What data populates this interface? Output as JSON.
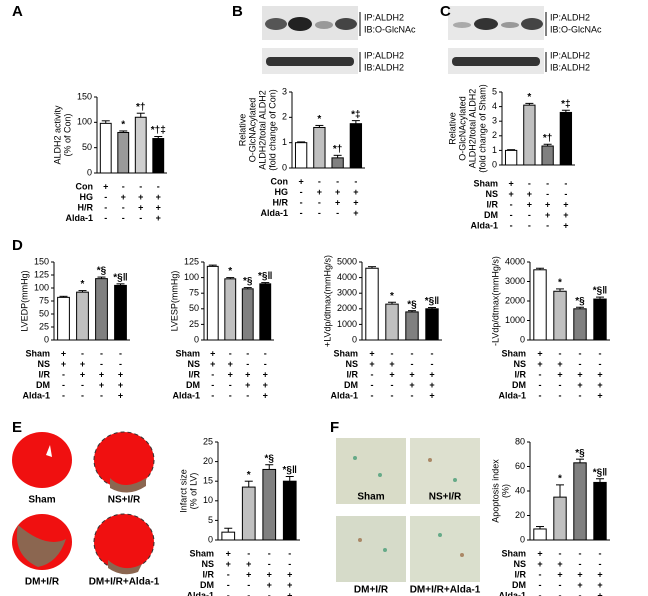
{
  "panel_labels": [
    "A",
    "B",
    "C",
    "D",
    "E",
    "F"
  ],
  "blots": [
    {
      "rows": [
        [
          "IP:ALDH2",
          "IB:O-GlcNAc"
        ],
        [
          "IP:ALDH2",
          "IB:ALDH2"
        ]
      ]
    },
    {
      "rows": [
        [
          "IP:ALDH2",
          "IB:O-GlcNAc"
        ],
        [
          "IP:ALDH2",
          "IB:ALDH2"
        ]
      ]
    }
  ],
  "images": [
    {
      "labels": [
        "Sham",
        "NS+I/R",
        "DM+I/R",
        "DM+I/R+Alda-1"
      ]
    },
    {
      "labels": [
        "Sham",
        "NS+I/R",
        "DM+I/R",
        "DM+I/R+Alda-1"
      ]
    }
  ],
  "chart_data": [
    {
      "type": "bar",
      "ylabel": [
        "ALDH2 activity",
        "(% of Con)"
      ],
      "ylim": [
        0,
        150
      ],
      "yticks": [
        0,
        50,
        100,
        150
      ],
      "values": [
        98,
        80,
        110,
        68
      ],
      "errors": [
        5,
        3,
        8,
        4
      ],
      "colors": [
        "#ffffff",
        "#9a9a9a",
        "#cfcfcf",
        "#000000"
      ],
      "annotations": [
        null,
        "*",
        "*†",
        "*†‡"
      ],
      "conditions": [
        {
          "label": "Con",
          "marks": [
            "+",
            "-",
            "-",
            "-"
          ]
        },
        {
          "label": "HG",
          "marks": [
            "-",
            "+",
            "+",
            "+"
          ]
        },
        {
          "label": "H/R",
          "marks": [
            "-",
            "-",
            "+",
            "+"
          ]
        },
        {
          "label": "Alda-1",
          "marks": [
            "-",
            "-",
            "-",
            "+"
          ]
        }
      ]
    },
    {
      "type": "bar",
      "ylabel": [
        "Relative",
        "O-GlcNAcylated",
        "ALDH2/total ALDH2",
        "(fold change of Con)"
      ],
      "ylim": [
        0,
        3
      ],
      "yticks": [
        0,
        1,
        2,
        3
      ],
      "values": [
        1.0,
        1.6,
        0.4,
        1.75
      ],
      "errors": [
        0.03,
        0.08,
        0.1,
        0.12
      ],
      "colors": [
        "#ffffff",
        "#c0c0c0",
        "#808080",
        "#000000"
      ],
      "annotations": [
        null,
        "*",
        "*†",
        "*‡"
      ],
      "conditions": [
        {
          "label": "Con",
          "marks": [
            "+",
            "-",
            "-",
            "-"
          ]
        },
        {
          "label": "HG",
          "marks": [
            "-",
            "+",
            "+",
            "+"
          ]
        },
        {
          "label": "H/R",
          "marks": [
            "-",
            "-",
            "+",
            "+"
          ]
        },
        {
          "label": "Alda-1",
          "marks": [
            "-",
            "-",
            "-",
            "+"
          ]
        }
      ]
    },
    {
      "type": "bar",
      "ylabel": [
        "Relative",
        "O-GlcNAcylated",
        "ALDH2/total ALDH2",
        "(fold change of Sham)"
      ],
      "ylim": [
        0,
        5
      ],
      "yticks": [
        0,
        1,
        2,
        3,
        4,
        5
      ],
      "values": [
        1.0,
        4.1,
        1.3,
        3.6
      ],
      "errors": [
        0.05,
        0.12,
        0.12,
        0.15
      ],
      "colors": [
        "#ffffff",
        "#c0c0c0",
        "#808080",
        "#000000"
      ],
      "annotations": [
        null,
        "*",
        "*†",
        "*‡"
      ],
      "conditions": [
        {
          "label": "Sham",
          "marks": [
            "+",
            "-",
            "-",
            "-"
          ]
        },
        {
          "label": "NS",
          "marks": [
            "+",
            "+",
            "-",
            "-"
          ]
        },
        {
          "label": "I/R",
          "marks": [
            "-",
            "+",
            "+",
            "+"
          ]
        },
        {
          "label": "DM",
          "marks": [
            "-",
            "-",
            "+",
            "+"
          ]
        },
        {
          "label": "Alda-1",
          "marks": [
            "-",
            "-",
            "-",
            "+"
          ]
        }
      ]
    },
    {
      "type": "bar",
      "ylabel": [
        "LVEDP(mmHg)"
      ],
      "ylim": [
        0,
        150
      ],
      "yticks": [
        0,
        25,
        50,
        75,
        100,
        125,
        150
      ],
      "values": [
        82,
        92,
        118,
        105
      ],
      "errors": [
        2,
        3,
        3,
        3
      ],
      "colors": [
        "#ffffff",
        "#c0c0c0",
        "#808080",
        "#000000"
      ],
      "annotations": [
        null,
        "*",
        "*§",
        "*§‖"
      ],
      "conditions": [
        {
          "label": "Sham",
          "marks": [
            "+",
            "-",
            "-",
            "-"
          ]
        },
        {
          "label": "NS",
          "marks": [
            "+",
            "+",
            "-",
            "-"
          ]
        },
        {
          "label": "I/R",
          "marks": [
            "-",
            "+",
            "+",
            "+"
          ]
        },
        {
          "label": "DM",
          "marks": [
            "-",
            "-",
            "+",
            "+"
          ]
        },
        {
          "label": "Alda-1",
          "marks": [
            "-",
            "-",
            "-",
            "+"
          ]
        }
      ]
    },
    {
      "type": "bar",
      "ylabel": [
        "LVESP(mmHg)"
      ],
      "ylim": [
        0,
        125
      ],
      "yticks": [
        0,
        25,
        50,
        75,
        100,
        125
      ],
      "values": [
        118,
        98,
        82,
        90
      ],
      "errors": [
        2,
        2,
        2,
        2
      ],
      "colors": [
        "#ffffff",
        "#c0c0c0",
        "#808080",
        "#000000"
      ],
      "annotations": [
        null,
        "*",
        "*§",
        "*§‖"
      ],
      "conditions": [
        {
          "label": "Sham",
          "marks": [
            "+",
            "-",
            "-",
            "-"
          ]
        },
        {
          "label": "NS",
          "marks": [
            "+",
            "+",
            "-",
            "-"
          ]
        },
        {
          "label": "I/R",
          "marks": [
            "-",
            "+",
            "+",
            "+"
          ]
        },
        {
          "label": "DM",
          "marks": [
            "-",
            "-",
            "+",
            "+"
          ]
        },
        {
          "label": "Alda-1",
          "marks": [
            "-",
            "-",
            "-",
            "+"
          ]
        }
      ]
    },
    {
      "type": "bar",
      "ylabel": [
        "+LVdp/dtmax(mmHg/s)"
      ],
      "ylim": [
        0,
        5000
      ],
      "yticks": [
        0,
        1000,
        2000,
        3000,
        4000,
        5000
      ],
      "values": [
        4600,
        2300,
        1800,
        2000
      ],
      "errors": [
        100,
        120,
        80,
        80
      ],
      "colors": [
        "#ffffff",
        "#c0c0c0",
        "#808080",
        "#000000"
      ],
      "annotations": [
        null,
        "*",
        "*§",
        "*§‖"
      ],
      "conditions": [
        {
          "label": "Sham",
          "marks": [
            "+",
            "-",
            "-",
            "-"
          ]
        },
        {
          "label": "NS",
          "marks": [
            "+",
            "+",
            "-",
            "-"
          ]
        },
        {
          "label": "I/R",
          "marks": [
            "-",
            "+",
            "+",
            "+"
          ]
        },
        {
          "label": "DM",
          "marks": [
            "-",
            "-",
            "+",
            "+"
          ]
        },
        {
          "label": "Alda-1",
          "marks": [
            "-",
            "-",
            "-",
            "+"
          ]
        }
      ]
    },
    {
      "type": "bar",
      "ylabel": [
        "-LVdp/dtmax(mmHg/s)"
      ],
      "ylim": [
        0,
        4000
      ],
      "yticks": [
        0,
        1000,
        2000,
        3000,
        4000
      ],
      "values": [
        3600,
        2500,
        1600,
        2100
      ],
      "errors": [
        80,
        120,
        80,
        100
      ],
      "colors": [
        "#ffffff",
        "#c0c0c0",
        "#808080",
        "#000000"
      ],
      "annotations": [
        null,
        "*",
        "*§",
        "*§‖"
      ],
      "conditions": [
        {
          "label": "Sham",
          "marks": [
            "+",
            "-",
            "-",
            "-"
          ]
        },
        {
          "label": "NS",
          "marks": [
            "+",
            "+",
            "-",
            "-"
          ]
        },
        {
          "label": "I/R",
          "marks": [
            "-",
            "+",
            "+",
            "+"
          ]
        },
        {
          "label": "DM",
          "marks": [
            "-",
            "-",
            "+",
            "+"
          ]
        },
        {
          "label": "Alda-1",
          "marks": [
            "-",
            "-",
            "-",
            "+"
          ]
        }
      ]
    },
    {
      "type": "bar",
      "ylabel": [
        "Infarct size",
        "(% of LV)"
      ],
      "ylim": [
        0,
        25
      ],
      "yticks": [
        0,
        5,
        10,
        15,
        20,
        25
      ],
      "values": [
        2,
        13.5,
        18,
        15
      ],
      "errors": [
        1,
        1.5,
        1.2,
        1.2
      ],
      "colors": [
        "#ffffff",
        "#c0c0c0",
        "#808080",
        "#000000"
      ],
      "annotations": [
        null,
        "*",
        "*§",
        "*§‖"
      ],
      "conditions": [
        {
          "label": "Sham",
          "marks": [
            "+",
            "-",
            "-",
            "-"
          ]
        },
        {
          "label": "NS",
          "marks": [
            "+",
            "+",
            "-",
            "-"
          ]
        },
        {
          "label": "I/R",
          "marks": [
            "-",
            "+",
            "+",
            "+"
          ]
        },
        {
          "label": "DM",
          "marks": [
            "-",
            "-",
            "+",
            "+"
          ]
        },
        {
          "label": "Alda-1",
          "marks": [
            "-",
            "-",
            "-",
            "+"
          ]
        }
      ]
    },
    {
      "type": "bar",
      "ylabel": [
        "Apoptosis index",
        "(%)"
      ],
      "ylim": [
        0,
        80
      ],
      "yticks": [
        0,
        20,
        40,
        60,
        80
      ],
      "values": [
        9,
        35,
        63,
        47
      ],
      "errors": [
        2,
        10,
        3,
        3
      ],
      "colors": [
        "#ffffff",
        "#c0c0c0",
        "#808080",
        "#000000"
      ],
      "annotations": [
        null,
        "*",
        "*§",
        "*§‖"
      ],
      "conditions": [
        {
          "label": "Sham",
          "marks": [
            "+",
            "-",
            "-",
            "-"
          ]
        },
        {
          "label": "NS",
          "marks": [
            "+",
            "+",
            "-",
            "-"
          ]
        },
        {
          "label": "I/R",
          "marks": [
            "-",
            "+",
            "+",
            "+"
          ]
        },
        {
          "label": "DM",
          "marks": [
            "-",
            "-",
            "+",
            "+"
          ]
        },
        {
          "label": "Alda-1",
          "marks": [
            "-",
            "-",
            "-",
            "+"
          ]
        }
      ]
    }
  ]
}
